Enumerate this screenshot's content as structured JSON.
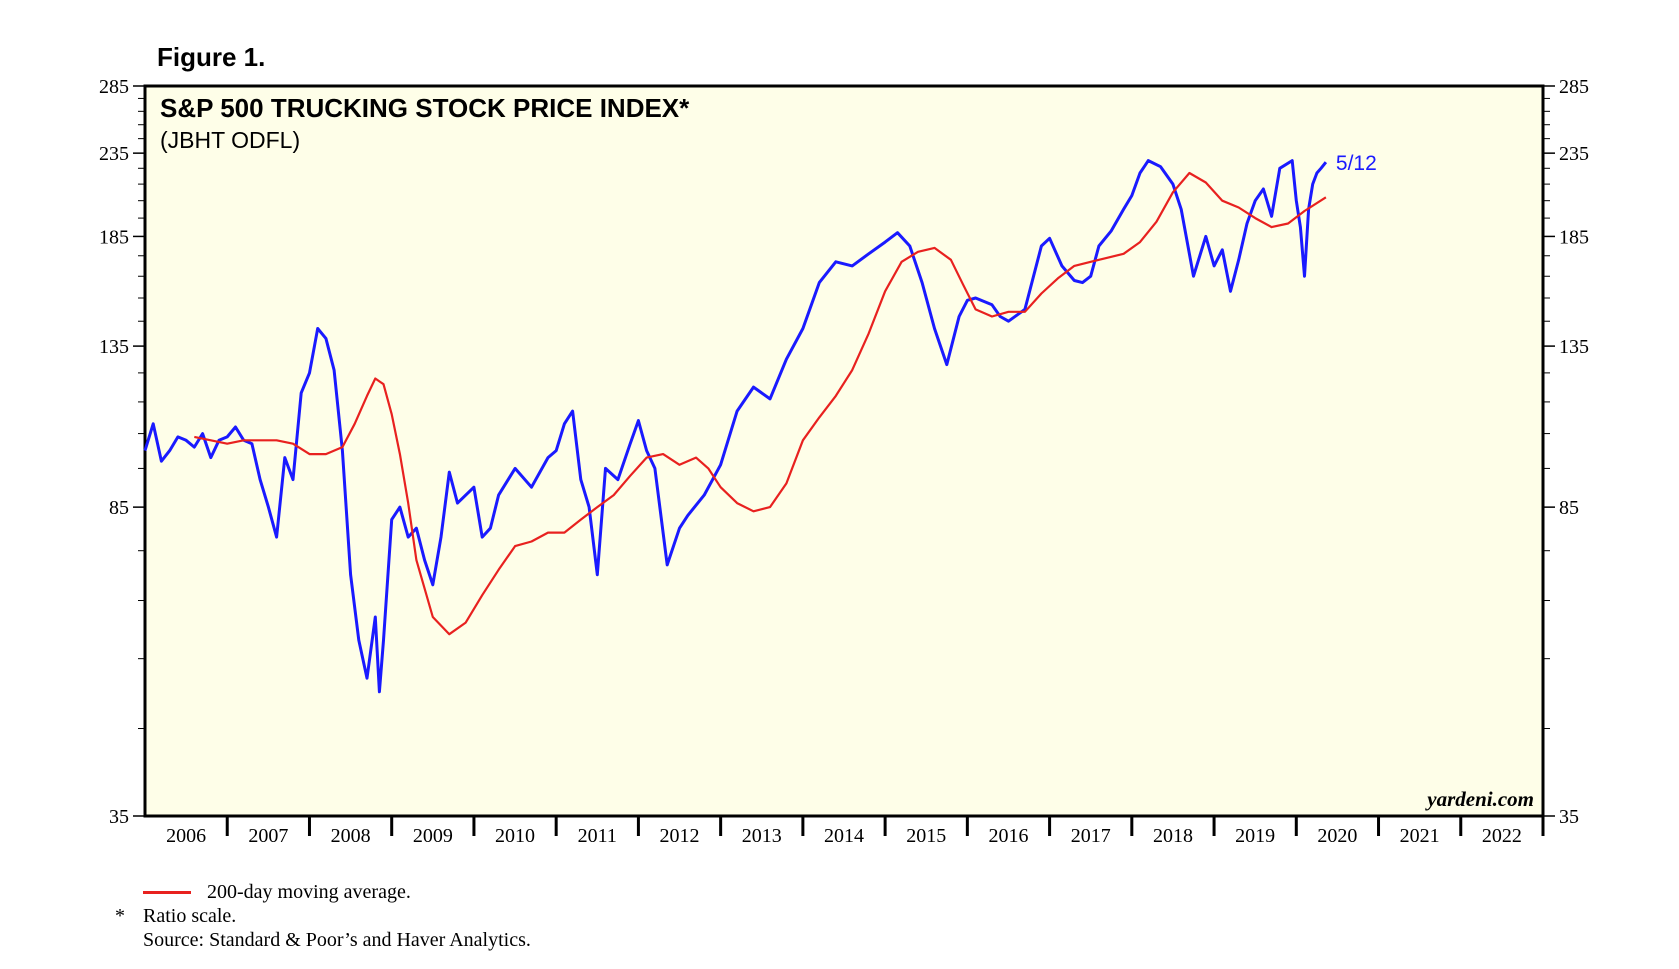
{
  "figure_label": "Figure 1.",
  "chart_data": {
    "type": "line",
    "title": "S&P 500 TRUCKING STOCK PRICE INDEX*",
    "subtitle": "(JBHT ODFL)",
    "y_scale": "log",
    "ylim": [
      35,
      285
    ],
    "y_ticks": [
      35,
      85,
      135,
      185,
      235,
      285
    ],
    "xlim": [
      2006,
      2023
    ],
    "x_ticks": [
      "2006",
      "2007",
      "2008",
      "2009",
      "2010",
      "2011",
      "2012",
      "2013",
      "2014",
      "2015",
      "2016",
      "2017",
      "2018",
      "2019",
      "2020",
      "2021",
      "2022"
    ],
    "grid": false,
    "background": "#fefee8",
    "last_date_label": "5/12",
    "watermark": "yardeni.com",
    "series": [
      {
        "name": "",
        "color": "#1a1aff",
        "x": [
          2006.0,
          2006.1,
          2006.2,
          2006.3,
          2006.4,
          2006.5,
          2006.6,
          2006.7,
          2006.8,
          2006.9,
          2007.0,
          2007.1,
          2007.2,
          2007.3,
          2007.4,
          2007.5,
          2007.6,
          2007.7,
          2007.8,
          2007.9,
          2008.0,
          2008.1,
          2008.2,
          2008.3,
          2008.4,
          2008.5,
          2008.6,
          2008.7,
          2008.8,
          2008.85,
          2008.9,
          2009.0,
          2009.1,
          2009.2,
          2009.3,
          2009.4,
          2009.5,
          2009.6,
          2009.7,
          2009.8,
          2010.0,
          2010.1,
          2010.2,
          2010.3,
          2010.5,
          2010.7,
          2010.9,
          2011.0,
          2011.1,
          2011.2,
          2011.3,
          2011.4,
          2011.5,
          2011.6,
          2011.75,
          2011.9,
          2012.0,
          2012.1,
          2012.2,
          2012.35,
          2012.5,
          2012.6,
          2012.8,
          2013.0,
          2013.2,
          2013.4,
          2013.6,
          2013.8,
          2014.0,
          2014.2,
          2014.4,
          2014.6,
          2014.8,
          2015.0,
          2015.15,
          2015.3,
          2015.45,
          2015.6,
          2015.75,
          2015.9,
          2016.0,
          2016.1,
          2016.3,
          2016.4,
          2016.5,
          2016.7,
          2016.9,
          2017.0,
          2017.15,
          2017.3,
          2017.4,
          2017.5,
          2017.6,
          2017.75,
          2017.9,
          2018.0,
          2018.1,
          2018.2,
          2018.35,
          2018.5,
          2018.6,
          2018.75,
          2018.9,
          2019.0,
          2019.1,
          2019.2,
          2019.3,
          2019.4,
          2019.5,
          2019.6,
          2019.7,
          2019.8,
          2019.95,
          2020.0,
          2020.05,
          2020.1,
          2020.15,
          2020.2,
          2020.25,
          2020.3,
          2020.36
        ],
        "values": [
          100,
          108,
          97,
          100,
          104,
          103,
          101,
          105,
          98,
          103,
          104,
          107,
          103,
          102,
          92,
          85,
          78,
          98,
          92,
          118,
          125,
          142,
          138,
          126,
          100,
          70,
          58,
          52,
          62,
          50,
          58,
          82,
          85,
          78,
          80,
          73,
          68,
          78,
          94,
          86,
          90,
          78,
          80,
          88,
          95,
          90,
          98,
          100,
          108,
          112,
          92,
          85,
          70,
          95,
          92,
          102,
          109,
          100,
          95,
          72,
          80,
          83,
          88,
          96,
          112,
          120,
          116,
          130,
          142,
          162,
          172,
          170,
          176,
          182,
          187,
          180,
          162,
          142,
          128,
          147,
          154,
          155,
          152,
          147,
          145,
          150,
          180,
          184,
          170,
          163,
          162,
          165,
          180,
          188,
          200,
          208,
          222,
          230,
          226,
          215,
          200,
          165,
          185,
          170,
          178,
          158,
          173,
          192,
          205,
          212,
          196,
          225,
          230,
          205,
          190,
          165,
          200,
          215,
          222,
          225,
          229
        ]
      },
      {
        "name": "200-day moving average.",
        "color": "#e8211f",
        "x": [
          2006.6,
          2006.8,
          2007.0,
          2007.2,
          2007.4,
          2007.6,
          2007.8,
          2008.0,
          2008.2,
          2008.4,
          2008.55,
          2008.7,
          2008.8,
          2008.9,
          2009.0,
          2009.1,
          2009.2,
          2009.3,
          2009.5,
          2009.7,
          2009.9,
          2010.1,
          2010.3,
          2010.5,
          2010.7,
          2010.9,
          2011.1,
          2011.3,
          2011.5,
          2011.7,
          2011.9,
          2012.1,
          2012.3,
          2012.5,
          2012.7,
          2012.85,
          2013.0,
          2013.2,
          2013.4,
          2013.6,
          2013.8,
          2014.0,
          2014.2,
          2014.4,
          2014.6,
          2014.8,
          2015.0,
          2015.2,
          2015.4,
          2015.6,
          2015.8,
          2015.95,
          2016.1,
          2016.3,
          2016.5,
          2016.7,
          2016.9,
          2017.1,
          2017.3,
          2017.5,
          2017.7,
          2017.9,
          2018.1,
          2018.3,
          2018.5,
          2018.7,
          2018.9,
          2019.1,
          2019.3,
          2019.5,
          2019.7,
          2019.9,
          2020.1,
          2020.36
        ],
        "values": [
          104,
          103,
          102,
          103,
          103,
          103,
          102,
          99,
          99,
          101,
          108,
          117,
          123,
          121,
          111,
          99,
          86,
          73,
          62,
          59,
          61,
          66,
          71,
          76,
          77,
          79,
          79,
          82,
          85,
          88,
          93,
          98,
          99,
          96,
          98,
          95,
          90,
          86,
          84,
          85,
          91,
          103,
          110,
          117,
          126,
          140,
          158,
          172,
          177,
          179,
          173,
          161,
          150,
          147,
          149,
          149,
          157,
          164,
          170,
          172,
          174,
          176,
          182,
          193,
          210,
          222,
          216,
          205,
          201,
          195,
          190,
          192,
          199,
          207
        ]
      }
    ]
  },
  "footer": {
    "legend_label": "200-day moving average.",
    "note_marker": "*",
    "note_text": "Ratio scale.",
    "source": "Source: Standard & Poor’s and Haver Analytics."
  }
}
